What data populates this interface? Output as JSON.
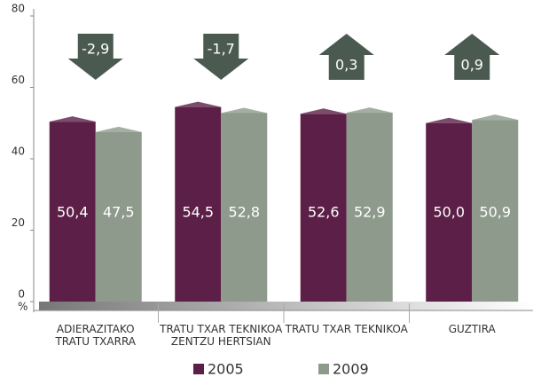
{
  "chart_data": {
    "type": "bar",
    "categories": [
      "ADIERAZITAKO\nTRATU TXARRA",
      "TRATU TXAR TEKNIKOA\nZENTZU HERTSIAN",
      "TRATU TXAR TEKNIKOA",
      "GUZTIRA"
    ],
    "series": [
      {
        "name": "2005",
        "color": "#5c1f47",
        "values": [
          50.4,
          54.5,
          52.6,
          50.0
        ],
        "value_labels": [
          "50,4",
          "54,5",
          "52,6",
          "50,0"
        ]
      },
      {
        "name": "2009",
        "color": "#8e9a8c",
        "values": [
          47.5,
          52.8,
          52.9,
          50.9
        ],
        "value_labels": [
          "47,5",
          "52,8",
          "52,9",
          "50,9"
        ]
      }
    ],
    "changes": {
      "color": "#4b5a51",
      "values": [
        -2.9,
        -1.7,
        0.3,
        0.9
      ],
      "value_labels": [
        "-2,9",
        "-1,7",
        "0,3",
        "0,9"
      ]
    },
    "ylim": [
      0,
      80
    ],
    "yticks": [
      0,
      20,
      40,
      60,
      80
    ],
    "ylabel": "%"
  }
}
